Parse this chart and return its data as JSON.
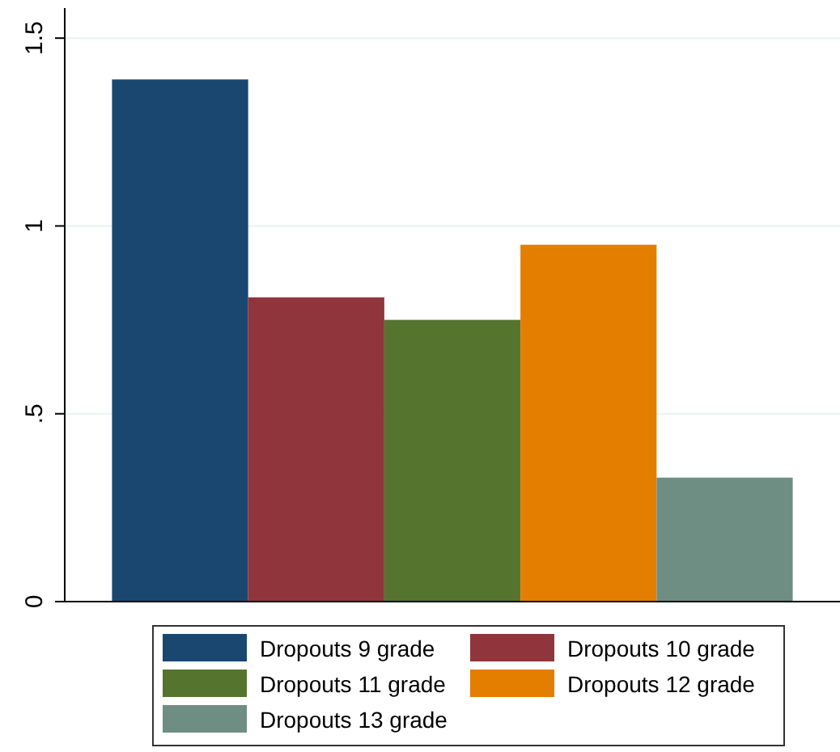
{
  "chart_data": {
    "type": "bar",
    "categories": [
      null
    ],
    "series": [
      {
        "name": "Dropouts 9 grade",
        "color": "#1a476f",
        "values": [
          1.39
        ]
      },
      {
        "name": "Dropouts 10 grade",
        "color": "#90353b",
        "values": [
          0.81
        ]
      },
      {
        "name": "Dropouts 11 grade",
        "color": "#55752f",
        "values": [
          0.75
        ]
      },
      {
        "name": "Dropouts 12 grade",
        "color": "#e37e00",
        "values": [
          0.95
        ]
      },
      {
        "name": "Dropouts 13 grade",
        "color": "#6e8e84",
        "values": [
          0.33
        ]
      }
    ],
    "ylim": [
      0,
      1.58
    ],
    "yticks": [
      0,
      {
        "value": 0.5,
        "label": ".5"
      },
      1,
      1.5
    ],
    "grid": "y",
    "legend": "bottom"
  }
}
